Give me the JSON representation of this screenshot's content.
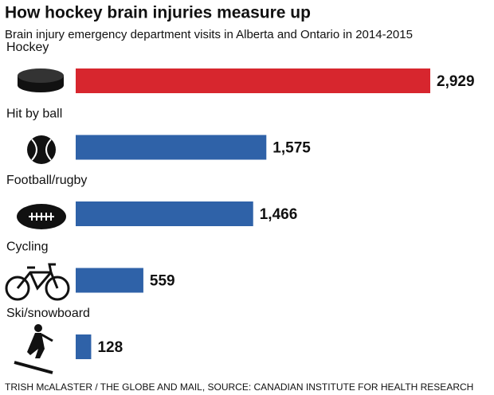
{
  "chart_data": {
    "type": "bar",
    "orientation": "horizontal",
    "title": "How hockey brain injuries measure up",
    "subtitle": "Brain injury emergency department visits in Alberta and Ontario in 2014-2015",
    "categories": [
      "Hockey",
      "Hit by ball",
      "Football/rugby",
      "Cycling",
      "Ski/snowboard"
    ],
    "values": [
      2929,
      1575,
      1466,
      559,
      128
    ],
    "value_labels": [
      "2,929",
      "1,575",
      "1,466",
      "559",
      "128"
    ],
    "colors": [
      "#d7262e",
      "#2f62a8",
      "#2f62a8",
      "#2f62a8",
      "#2f62a8"
    ],
    "source": "TRISH McALASTER / THE GLOBE AND MAIL, SOURCE: CANADIAN INSTITUTE FOR HEALTH RESEARCH"
  }
}
